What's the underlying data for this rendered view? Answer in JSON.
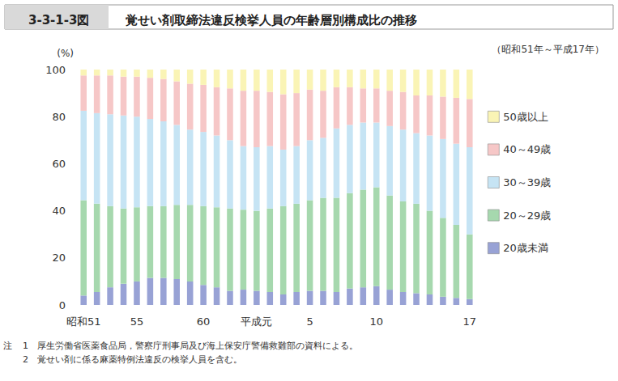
{
  "chart_data": {
    "type": "bar",
    "figure_label": "3-3-1-3図",
    "title": "覚せい剤取締法違反検挙人員の年齢層別構成比の推移",
    "subtitle": "（昭和51年～平成17年）",
    "y_label": "(%)",
    "categories": [
      "昭和51",
      null,
      null,
      null,
      "55",
      null,
      null,
      null,
      null,
      "60",
      null,
      null,
      null,
      "平成元",
      null,
      null,
      null,
      "5",
      null,
      null,
      null,
      null,
      "10",
      null,
      null,
      null,
      null,
      null,
      null,
      "17"
    ],
    "series": [
      {
        "name": "20歳未満",
        "color": "#98a2d5",
        "values": [
          4,
          5.5,
          7.5,
          9,
          10,
          11.5,
          11.5,
          11,
          10,
          8.5,
          7.5,
          6,
          6.5,
          6,
          5.5,
          4.5,
          5.5,
          6,
          6,
          5.5,
          7,
          7.5,
          8,
          6.5,
          5.5,
          5,
          4.5,
          3.5,
          3,
          2.5
        ]
      },
      {
        "name": "20～29歳",
        "color": "#a6d8ae",
        "values": [
          40.5,
          37.5,
          34.5,
          32,
          31.5,
          30.5,
          30.5,
          31.5,
          32.5,
          33.5,
          34,
          35,
          34,
          34,
          35.5,
          37.5,
          37.5,
          38.5,
          39.5,
          40,
          40.5,
          41.5,
          42,
          40,
          38.5,
          38,
          35.5,
          33.5,
          31,
          27.5
        ]
      },
      {
        "name": "30～39歳",
        "color": "#c6e4f4",
        "values": [
          38,
          38.5,
          39,
          39.5,
          38.5,
          37,
          36,
          34,
          32,
          31.5,
          30.5,
          29,
          27,
          27,
          26.5,
          24,
          24.5,
          25.5,
          25.5,
          29.5,
          29,
          28.5,
          27.5,
          29.5,
          30.5,
          30,
          32,
          33.5,
          34.5,
          37
        ]
      },
      {
        "name": "40～49歳",
        "color": "#f6c7c7",
        "values": [
          15,
          16,
          16.5,
          16.5,
          17,
          17.5,
          18,
          18.5,
          19.5,
          20,
          20.5,
          22,
          23.5,
          24,
          23,
          23.5,
          22.5,
          21.5,
          20,
          17.5,
          16,
          14.5,
          14.5,
          15,
          16,
          16,
          17,
          18,
          19.5,
          20.5
        ]
      },
      {
        "name": "50歳以上",
        "color": "#faf4b5",
        "values": [
          2.5,
          2.5,
          2.5,
          3,
          3,
          3.5,
          4,
          5,
          6,
          6.5,
          7.5,
          8,
          9,
          9,
          9.5,
          10.5,
          10,
          8.5,
          9,
          7.5,
          7.5,
          8,
          8,
          9,
          9.5,
          11,
          11,
          11.5,
          12,
          12.5
        ]
      }
    ],
    "stacked": true,
    "ylim": [
      0,
      100
    ],
    "yticks": [
      0,
      20,
      40,
      60,
      80,
      100
    ],
    "grid": false,
    "legend": "right",
    "data_labels": false,
    "notes": {
      "label": "注",
      "items": [
        "1　厚生労働省医薬食品局，警察庁刑事局及び海上保安庁警備救難部の資料による。",
        "2　覚せい剤に係る麻薬特例法違反の検挙人員を含む。"
      ]
    }
  }
}
